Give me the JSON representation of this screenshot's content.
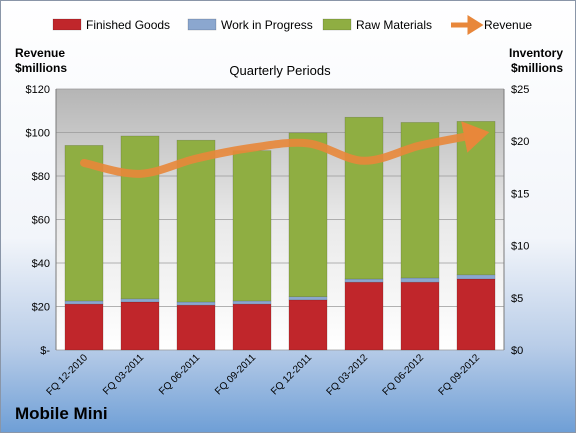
{
  "chart_data": {
    "type": "bar",
    "subtitle": "Quarterly Periods",
    "ylabel_left": [
      "Revenue",
      "$millions"
    ],
    "ylabel_right": [
      "Inventory",
      "$millions"
    ],
    "categories": [
      "FQ 12-2010",
      "FQ 03-2011",
      "FQ 06-2011",
      "FQ 09-2011",
      "FQ 12-2011",
      "FQ 03-2012",
      "FQ 06-2012",
      "FQ 09-2012"
    ],
    "left_axis": {
      "min": 0,
      "max": 120,
      "step": 20,
      "ticks": [
        "$-",
        "$20",
        "$40",
        "$60",
        "$80",
        "$100",
        "$120"
      ]
    },
    "right_axis": {
      "min": 0,
      "max": 25,
      "step": 5,
      "ticks": [
        "$0",
        "$5",
        "$10",
        "$15",
        "$20",
        "$25"
      ]
    },
    "stacked": true,
    "series": [
      {
        "name": "Finished Goods",
        "axis": "right",
        "color": "#c0262b",
        "values": [
          4.4,
          4.6,
          4.3,
          4.4,
          4.8,
          6.5,
          6.5,
          6.8
        ]
      },
      {
        "name": "Work in Progress",
        "axis": "right",
        "color": "#8ba7cf",
        "values": [
          0.3,
          0.3,
          0.3,
          0.3,
          0.3,
          0.3,
          0.4,
          0.4
        ]
      },
      {
        "name": "Raw Materials",
        "axis": "right",
        "color": "#8fae42",
        "values": [
          14.9,
          15.6,
          15.5,
          14.4,
          15.7,
          15.5,
          14.9,
          14.7
        ]
      },
      {
        "name": "Revenue",
        "axis": "left",
        "type": "line",
        "color": "#e8873a",
        "values": [
          86,
          81,
          88,
          93,
          95,
          87,
          94,
          99
        ]
      }
    ],
    "legend_position": "top"
  },
  "brand": "Mobile Mini"
}
